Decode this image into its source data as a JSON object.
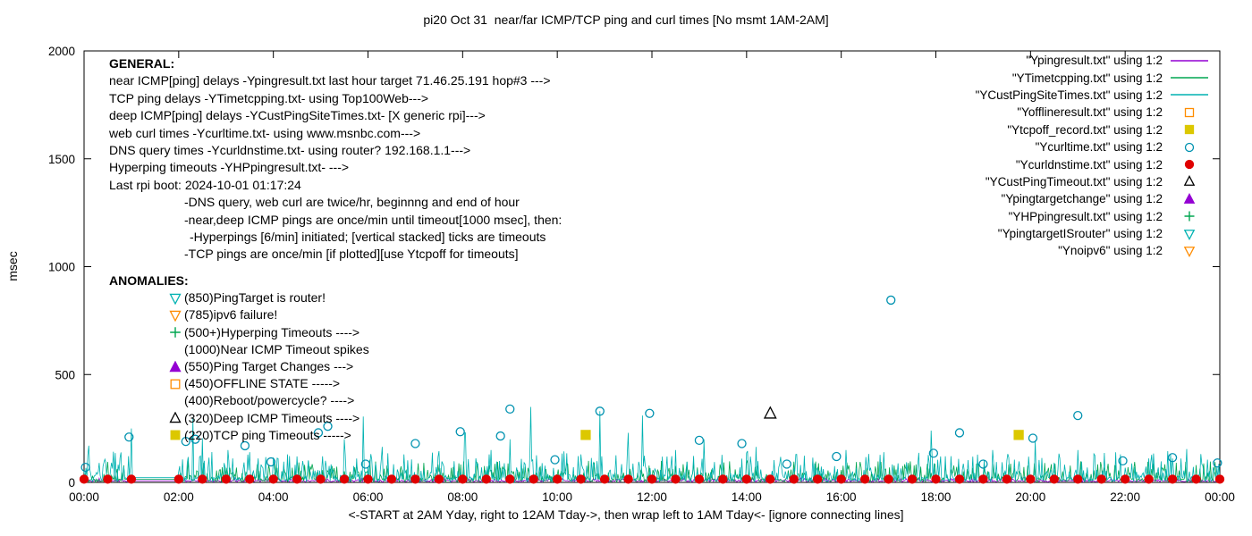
{
  "chart_data": {
    "type": "line",
    "title": "pi20 Oct 31  near/far ICMP/TCP ping and curl times [No msmt 1AM-2AM]",
    "ylabel": "msec",
    "xlabel": "<-START at 2AM Yday, right to 12AM Tday->, then wrap left to 1AM Tday<- [ignore connecting lines]",
    "ylim": [
      0,
      2000
    ],
    "yticks": [
      0,
      500,
      1000,
      1500,
      2000
    ],
    "xticks": [
      "00:00",
      "02:00",
      "04:00",
      "06:00",
      "08:00",
      "10:00",
      "12:00",
      "14:00",
      "16:00",
      "18:00",
      "20:00",
      "22:00",
      "00:00"
    ],
    "x_hours_span": 24,
    "no_measurement_gap_hours": [
      1,
      2
    ],
    "grid": false,
    "legend_position": "top-right",
    "legend": [
      {
        "label": "\"Ypingresult.txt\" using 1:2",
        "shape": "line",
        "color": "#9400d3"
      },
      {
        "label": "\"YTimetcpping.txt\" using 1:2",
        "shape": "line",
        "color": "#00a550"
      },
      {
        "label": "\"YCustPingSiteTimes.txt\" using 1:2",
        "shape": "line",
        "color": "#00b2b2"
      },
      {
        "label": "\"Yofflineresult.txt\" using 1:2",
        "shape": "square",
        "color": "#ff8c00",
        "fill": false
      },
      {
        "label": "\"Ytcpoff_record.txt\" using 1:2",
        "shape": "square",
        "color": "#dcc800",
        "fill": true
      },
      {
        "label": "\"Ycurltime.txt\" using 1:2",
        "shape": "circle",
        "color": "#0092b0",
        "fill": false
      },
      {
        "label": "\"Ycurldnstime.txt\" using 1:2",
        "shape": "circle",
        "color": "#e00000",
        "fill": true
      },
      {
        "label": "\"YCustPingTimeout.txt\" using 1:2",
        "shape": "triangle-up",
        "color": "#000000",
        "fill": false
      },
      {
        "label": "\"Ypingtargetchange\" using 1:2",
        "shape": "triangle-up",
        "color": "#9400d3",
        "fill": true
      },
      {
        "label": "\"YHPpingresult.txt\" using 1:2",
        "shape": "plus",
        "color": "#00a550"
      },
      {
        "label": "\"YpingtargetISrouter\" using 1:2",
        "shape": "triangle-down",
        "color": "#00b2b2",
        "fill": false
      },
      {
        "label": "\"Ynoipv6\" using 1:2",
        "shape": "triangle-down",
        "color": "#ff8c00",
        "fill": false
      }
    ],
    "series": [
      {
        "name": "Ypingresult",
        "type": "line",
        "color": "#9400d3",
        "seed": 11,
        "baseline": 8,
        "noise": 6,
        "spikes": []
      },
      {
        "name": "YTimetcpping",
        "type": "line",
        "color": "#00a550",
        "seed": 22,
        "baseline": 14,
        "noise": 45,
        "spikes": [
          [
            0.5,
            95
          ],
          [
            2.2,
            110
          ],
          [
            4.05,
            85
          ],
          [
            6.05,
            105
          ],
          [
            8.3,
            95
          ],
          [
            10.2,
            90
          ],
          [
            12.2,
            100
          ],
          [
            14.0,
            90
          ],
          [
            16.4,
            95
          ],
          [
            18.2,
            85
          ],
          [
            20.3,
            90
          ],
          [
            22.2,
            95
          ]
        ]
      },
      {
        "name": "YCustPingSiteTimes",
        "type": "line",
        "color": "#00b2b2",
        "seed": 33,
        "baseline": 22,
        "noise": 62,
        "spikes": [
          [
            0.1,
            170
          ],
          [
            1.0,
            250
          ],
          [
            2.3,
            300
          ],
          [
            2.5,
            205
          ],
          [
            3.05,
            150
          ],
          [
            3.5,
            140
          ],
          [
            4.3,
            130
          ],
          [
            5.5,
            200
          ],
          [
            5.9,
            305
          ],
          [
            6.3,
            165
          ],
          [
            7.5,
            145
          ],
          [
            8.05,
            230
          ],
          [
            8.6,
            150
          ],
          [
            9.0,
            200
          ],
          [
            9.45,
            350
          ],
          [
            10.5,
            130
          ],
          [
            10.9,
            330
          ],
          [
            11.5,
            230
          ],
          [
            11.8,
            310
          ],
          [
            12.5,
            150
          ],
          [
            13.1,
            200
          ],
          [
            14.2,
            165
          ],
          [
            15.05,
            130
          ],
          [
            16.1,
            150
          ],
          [
            16.9,
            140
          ],
          [
            17.9,
            240
          ],
          [
            19.2,
            150
          ],
          [
            20.1,
            195
          ],
          [
            21.0,
            150
          ],
          [
            21.9,
            130
          ],
          [
            22.9,
            145
          ],
          [
            23.3,
            155
          ]
        ]
      },
      {
        "name": "Ycurltime",
        "type": "scatter",
        "marker": "circle",
        "color": "#0092b0",
        "fill": false,
        "size": 4.5,
        "points": [
          [
            0.03,
            70
          ],
          [
            0.95,
            210
          ],
          [
            2.15,
            190
          ],
          [
            2.35,
            200
          ],
          [
            3.4,
            170
          ],
          [
            3.95,
            95
          ],
          [
            4.95,
            230
          ],
          [
            5.15,
            260
          ],
          [
            5.95,
            85
          ],
          [
            7.0,
            180
          ],
          [
            7.95,
            235
          ],
          [
            8.8,
            215
          ],
          [
            9.0,
            340
          ],
          [
            9.95,
            105
          ],
          [
            10.9,
            330
          ],
          [
            11.95,
            320
          ],
          [
            13.0,
            195
          ],
          [
            13.9,
            180
          ],
          [
            14.85,
            85
          ],
          [
            15.9,
            120
          ],
          [
            17.05,
            845
          ],
          [
            17.95,
            135
          ],
          [
            18.5,
            230
          ],
          [
            19.0,
            85
          ],
          [
            20.05,
            205
          ],
          [
            21.0,
            310
          ],
          [
            21.95,
            100
          ],
          [
            23.0,
            115
          ],
          [
            23.95,
            90
          ]
        ]
      },
      {
        "name": "Ycurldnstime",
        "type": "scatter",
        "marker": "circle",
        "color": "#e00000",
        "fill": true,
        "size": 4.5,
        "repeat": {
          "start": 0,
          "end": 24,
          "step": 0.5,
          "value": 15
        }
      },
      {
        "name": "Ytcpoff_record",
        "type": "scatter",
        "marker": "square",
        "color": "#dcc800",
        "fill": true,
        "size": 5,
        "points": [
          [
            10.6,
            220
          ],
          [
            19.75,
            220
          ]
        ]
      },
      {
        "name": "YCustPingTimeout",
        "type": "scatter",
        "marker": "triangle-up",
        "color": "#000000",
        "fill": false,
        "size": 5.5,
        "points": [
          [
            14.5,
            320
          ]
        ]
      }
    ],
    "annotations": {
      "general": {
        "heading": "GENERAL:",
        "lines": [
          {
            "indent": 0,
            "text": "near ICMP[ping] delays -Ypingresult.txt last hour target 71.46.25.191 hop#3 --->"
          },
          {
            "indent": 0,
            "text": "TCP ping delays -YTimetcpping.txt- using Top100Web--->"
          },
          {
            "indent": 0,
            "text": "deep ICMP[ping] delays -YCustPingSiteTimes.txt- [X generic rpi]--->"
          },
          {
            "indent": 0,
            "text": "web curl times -Ycurltime.txt- using www.msnbc.com--->"
          },
          {
            "indent": 0,
            "text": "DNS query times -Ycurldnstime.txt- using router? 192.168.1.1--->"
          },
          {
            "indent": 0,
            "text": "Hyperping timeouts -YHPpingresult.txt- --->"
          },
          {
            "indent": 0,
            "text": "Last rpi boot: 2024-10-01 01:17:24"
          },
          {
            "indent": 1,
            "text": "-DNS query, web curl are twice/hr, beginnng and end of hour"
          },
          {
            "indent": 1,
            "text": "-near,deep ICMP pings are once/min until timeout[1000 msec], then:"
          },
          {
            "indent": 2,
            "text": "-Hyperpings [6/min] initiated; [vertical stacked] ticks are timeouts"
          },
          {
            "indent": 1,
            "text": "-TCP pings are once/min [if plotted][use Ytcpoff for timeouts]"
          }
        ]
      },
      "anomalies": {
        "heading": "ANOMALIES:",
        "items": [
          {
            "marker": {
              "shape": "triangle-down",
              "color": "#00b2b2",
              "fill": false
            },
            "text": "(850)PingTarget is router!"
          },
          {
            "marker": {
              "shape": "triangle-down",
              "color": "#ff8c00",
              "fill": false
            },
            "text": "(785)ipv6 failure!"
          },
          {
            "marker": {
              "shape": "plus",
              "color": "#00a550"
            },
            "text": "(500+)Hyperping Timeouts ---->"
          },
          {
            "marker": null,
            "text": "(1000)Near ICMP Timeout spikes"
          },
          {
            "marker": {
              "shape": "triangle-up",
              "color": "#9400d3",
              "fill": true
            },
            "text": "(550)Ping Target Changes --->"
          },
          {
            "marker": {
              "shape": "square",
              "color": "#ff8c00",
              "fill": false
            },
            "text": "(450)OFFLINE STATE ----->"
          },
          {
            "marker": null,
            "text": "(400)Reboot/powercycle? ---->"
          },
          {
            "marker": {
              "shape": "triangle-up",
              "color": "#000000",
              "fill": false
            },
            "text": "(320)Deep ICMP Timeouts ---->"
          },
          {
            "marker": {
              "shape": "square",
              "color": "#dcc800",
              "fill": true
            },
            "text": "(220)TCP ping Timeouts ----->"
          }
        ]
      }
    }
  }
}
